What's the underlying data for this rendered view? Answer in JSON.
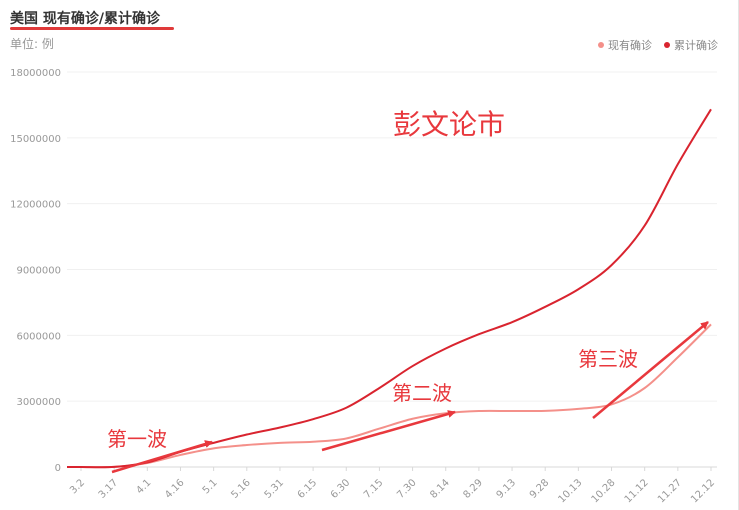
{
  "header": {
    "title": "美国 现有确诊/累计确诊",
    "unit": "单位: 例"
  },
  "legend": [
    {
      "label": "现有确诊",
      "color": "#f4908a"
    },
    {
      "label": "累计确诊",
      "color": "#d9242f"
    }
  ],
  "annotations": {
    "watermark": "彭文论市",
    "wave1": "第一波",
    "wave2": "第二波",
    "wave3": "第三波",
    "arrow_color": "#e8383d"
  },
  "chart_data": {
    "type": "line",
    "title": "美国 现有确诊/累计确诊",
    "ylabel": "单位: 例",
    "ylim": [
      0,
      18000000
    ],
    "yticks": [
      0,
      3000000,
      6000000,
      9000000,
      12000000,
      15000000,
      18000000
    ],
    "ytick_labels": [
      "0",
      "3000000",
      "6000000",
      "9000000",
      "12000000",
      "15000000",
      "18000000"
    ],
    "xtick_labels": [
      "3.2",
      "3.17",
      "4.1",
      "4.16",
      "5.1",
      "5.16",
      "5.31",
      "6.15",
      "6.30",
      "7.15",
      "7.30",
      "8.14",
      "8.29",
      "9.13",
      "9.28",
      "10.13",
      "10.28",
      "11.12",
      "11.27",
      "12.12"
    ],
    "x": [
      "3.2",
      "3.17",
      "4.1",
      "4.16",
      "5.1",
      "5.16",
      "5.31",
      "6.15",
      "6.30",
      "7.15",
      "7.30",
      "8.14",
      "8.29",
      "9.13",
      "9.28",
      "10.13",
      "10.28",
      "11.12",
      "11.27",
      "12.12"
    ],
    "grid": true,
    "legend_position": "top-right",
    "series": [
      {
        "name": "现有确诊",
        "color": "#f4908a",
        "values": [
          0,
          5000,
          180000,
          550000,
          850000,
          1000000,
          1100000,
          1150000,
          1300000,
          1750000,
          2200000,
          2450000,
          2550000,
          2550000,
          2560000,
          2650000,
          2850000,
          3600000,
          5000000,
          6500000
        ]
      },
      {
        "name": "累计确诊",
        "color": "#d9242f",
        "values": [
          0,
          4000,
          210000,
          690000,
          1100000,
          1480000,
          1800000,
          2180000,
          2700000,
          3600000,
          4600000,
          5400000,
          6050000,
          6600000,
          7300000,
          8100000,
          9200000,
          11000000,
          13800000,
          16300000
        ]
      }
    ]
  }
}
